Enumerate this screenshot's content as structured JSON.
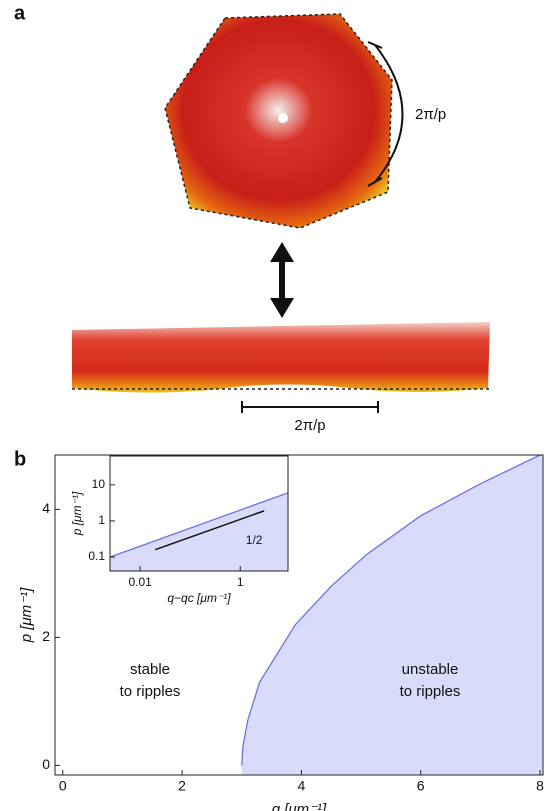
{
  "panel_a": {
    "label": "a",
    "ring_period_label": "2π/p",
    "strip_period_label": "2π/p"
  },
  "chart_data": [
    {
      "type": "area",
      "label": "b",
      "x_label": "q [μm⁻¹]",
      "y_label": "p [μm⁻¹]",
      "x": [
        3,
        3.02,
        3.1,
        3.3,
        3.9,
        4.5,
        5.1,
        6,
        7,
        8
      ],
      "values": [
        0,
        0.3,
        0.7,
        1.3,
        2.2,
        2.8,
        3.3,
        3.9,
        4.4,
        4.85
      ],
      "color": "#6a72e6",
      "fill": "#d9dbfb",
      "xlim": [
        -0.13,
        8.05
      ],
      "ylim": [
        -0.15,
        4.85
      ],
      "xticks": [
        0,
        2,
        4,
        6,
        8
      ],
      "yticks": [
        0,
        2,
        4
      ],
      "region_labels": [
        [
          "stable",
          "to ripples"
        ],
        [
          "unstable",
          "to ripples"
        ]
      ]
    },
    {
      "type": "area",
      "x_label": "q−qc [μm⁻¹]",
      "y_label": "p [μm⁻¹]",
      "log": true,
      "x": [
        0.0025,
        9
      ],
      "values": [
        0.1,
        6
      ],
      "color": "#6a72e6",
      "fill": "#d9dbfb",
      "slope_line": {
        "x": [
          0.02,
          3
        ],
        "values": [
          0.16,
          1.9
        ],
        "label": "1/2"
      },
      "xlim": [
        0.0025,
        9
      ],
      "ylim": [
        0.041,
        63
      ],
      "xticks": [
        0.01,
        1
      ],
      "yticks": [
        0.1,
        1,
        10
      ]
    }
  ]
}
